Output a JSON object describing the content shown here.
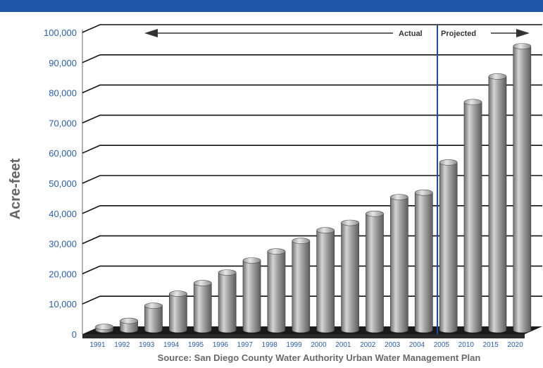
{
  "chart_data": {
    "type": "bar",
    "ylabel": "Acre-feet",
    "source": "Source: San Diego County Water Authority Urban Water Management Plan",
    "ylim": [
      0,
      100000
    ],
    "yticks": [
      "0",
      "10,000",
      "20,000",
      "30,000",
      "40,000",
      "50,000",
      "60,000",
      "70,000",
      "80,000",
      "90,000",
      "100,000"
    ],
    "categories": [
      "1991",
      "1992",
      "1993",
      "1994",
      "1995",
      "1996",
      "1997",
      "1998",
      "1999",
      "2000",
      "2001",
      "2002",
      "2003",
      "2004",
      "2005",
      "2010",
      "2015",
      "2020"
    ],
    "values": [
      1000,
      3000,
      8000,
      12000,
      15500,
      19000,
      23000,
      26000,
      29500,
      33000,
      35500,
      38500,
      44000,
      45500,
      55500,
      75500,
      84000,
      94000
    ],
    "annotations": {
      "actual": "Actual",
      "projected": "Projected"
    },
    "grid": true,
    "bar_color": "#8f8f8f"
  }
}
